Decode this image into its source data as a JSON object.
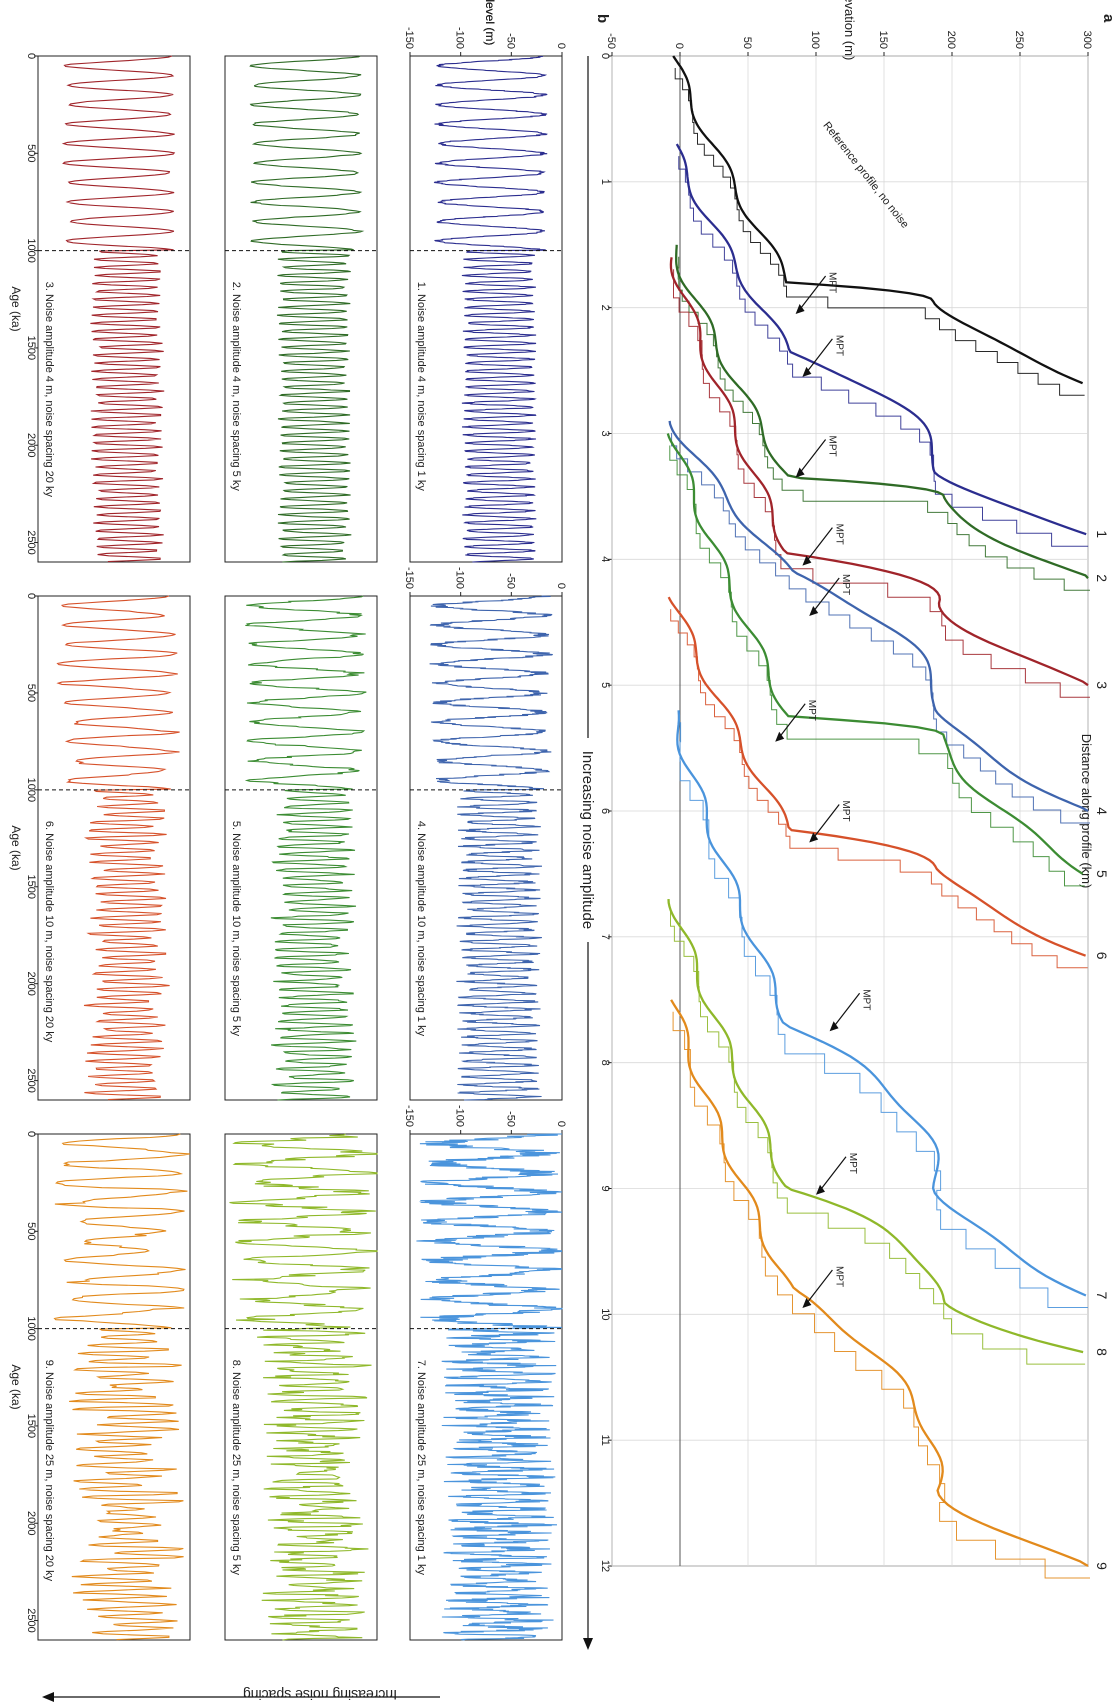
{
  "figure": {
    "panel_a_label": "a",
    "panel_b_label": "b",
    "increasing_noise_amplitude": "Increasing noise amplitude",
    "increasing_noise_spacing": "Increasing noise spacing"
  },
  "chart_data": [
    {
      "panel": "a",
      "type": "line",
      "xlabel": "Distance along profile (km)",
      "ylabel": "Elevation (m)",
      "xlim": [
        0,
        12
      ],
      "ylim": [
        -50,
        300
      ],
      "xticks": [
        0,
        1,
        2,
        3,
        4,
        5,
        6,
        7,
        8,
        9,
        10,
        11,
        12
      ],
      "yticks": [
        -50,
        0,
        50,
        100,
        150,
        200,
        250,
        300
      ],
      "grid": true,
      "reference_annotation": "Reference profile, no noise",
      "mpt_label": "MPT",
      "mpt_annotations": [
        {
          "series": "Reference",
          "x": 2.05,
          "y": 85
        },
        {
          "series": "1",
          "x": 2.55,
          "y": 90
        },
        {
          "series": "2",
          "x": 3.35,
          "y": 85
        },
        {
          "series": "3",
          "x": 4.05,
          "y": 90
        },
        {
          "series": "4",
          "x": 4.45,
          "y": 95
        },
        {
          "series": "5",
          "x": 5.45,
          "y": 70
        },
        {
          "series": "6",
          "x": 6.25,
          "y": 95
        },
        {
          "series": "7",
          "x": 7.75,
          "y": 110
        },
        {
          "series": "8",
          "x": 9.05,
          "y": 100
        },
        {
          "series": "9",
          "x": 9.95,
          "y": 90
        }
      ],
      "series": [
        {
          "name": "Reference",
          "label": "",
          "color": "#111111",
          "start": 0.0,
          "shelf_start": 1.8,
          "shelf_end": 1.95,
          "terrace": 2.05,
          "end": 2.6
        },
        {
          "name": "1",
          "label": "1",
          "color": "#2b2d8f",
          "start": 0.7,
          "shelf_start": 2.35,
          "shelf_end": 3.3,
          "terrace": 2.55,
          "end": 3.8
        },
        {
          "name": "2",
          "label": "2",
          "color": "#2f6b26",
          "start": 1.5,
          "shelf_start": 3.35,
          "shelf_end": 3.5,
          "terrace": 3.35,
          "end": 4.15
        },
        {
          "name": "3",
          "label": "3",
          "color": "#a0242a",
          "start": 1.6,
          "shelf_start": 3.95,
          "shelf_end": 4.35,
          "terrace": 4.05,
          "end": 5.0
        },
        {
          "name": "4",
          "label": "4",
          "color": "#3e64ad",
          "start": 2.9,
          "shelf_start": 4.1,
          "shelf_end": 5.2,
          "terrace": 4.45,
          "end": 6.0
        },
        {
          "name": "5",
          "label": "5",
          "color": "#3c8c33",
          "start": 3.0,
          "shelf_start": 5.25,
          "shelf_end": 5.4,
          "terrace": 5.45,
          "end": 6.5
        },
        {
          "name": "6",
          "label": "6",
          "color": "#d6512a",
          "start": 4.3,
          "shelf_start": 6.15,
          "shelf_end": 6.45,
          "terrace": 6.25,
          "end": 7.15
        },
        {
          "name": "7",
          "label": "7",
          "color": "#4a94dc",
          "start": 5.2,
          "shelf_start": 7.7,
          "shelf_end": 9.0,
          "terrace": 7.75,
          "end": 9.85
        },
        {
          "name": "8",
          "label": "8",
          "color": "#8fb82a",
          "start": 6.7,
          "shelf_start": 9.0,
          "shelf_end": 9.9,
          "terrace": 9.05,
          "end": 10.3
        },
        {
          "name": "9",
          "label": "9",
          "color": "#e28a1c",
          "start": 7.5,
          "shelf_start": 9.8,
          "shelf_end": 11.4,
          "terrace": 9.95,
          "end": 12.0
        }
      ]
    },
    {
      "panel": "b",
      "type": "line",
      "xlabel": "Age (ka)",
      "ylabel": "Sea level (m)",
      "xlim": [
        0,
        2600
      ],
      "ylim": [
        -150,
        0
      ],
      "xticks": [
        0,
        500,
        1000,
        1500,
        2000,
        2500
      ],
      "yticks": [
        -150,
        -100,
        -50,
        0
      ],
      "mpt_age_ka": 1000,
      "series": [
        {
          "id": 1,
          "label": "1. Noise amplitude 4 m, noise spacing 1 ky",
          "noise_amplitude_m": 4,
          "noise_spacing_ky": 1,
          "color": "#2b2d8f"
        },
        {
          "id": 2,
          "label": "2. Noise amplitude 4 m, noise spacing 5 ky",
          "noise_amplitude_m": 4,
          "noise_spacing_ky": 5,
          "color": "#2f6b26"
        },
        {
          "id": 3,
          "label": "3. Noise amplitude 4 m, noise spacing 20 ky",
          "noise_amplitude_m": 4,
          "noise_spacing_ky": 20,
          "color": "#a0242a"
        },
        {
          "id": 4,
          "label": "4. Noise amplitude 10 m, noise spacing 1 ky",
          "noise_amplitude_m": 10,
          "noise_spacing_ky": 1,
          "color": "#3e64ad"
        },
        {
          "id": 5,
          "label": "5. Noise amplitude 10 m, noise spacing 5 ky",
          "noise_amplitude_m": 10,
          "noise_spacing_ky": 5,
          "color": "#3c8c33"
        },
        {
          "id": 6,
          "label": "6. Noise amplitude 10 m, noise spacing 20 ky",
          "noise_amplitude_m": 10,
          "noise_spacing_ky": 20,
          "color": "#d6512a"
        },
        {
          "id": 7,
          "label": "7. Noise amplitude 25 m, noise spacing 1 ky",
          "noise_amplitude_m": 25,
          "noise_spacing_ky": 1,
          "color": "#4a94dc"
        },
        {
          "id": 8,
          "label": "8. Noise amplitude 25 m, noise spacing 5 ky",
          "noise_amplitude_m": 25,
          "noise_spacing_ky": 5,
          "color": "#8fb82a"
        },
        {
          "id": 9,
          "label": "9. Noise amplitude 25 m, noise spacing 20 ky",
          "noise_amplitude_m": 25,
          "noise_spacing_ky": 20,
          "color": "#e28a1c"
        }
      ]
    }
  ]
}
